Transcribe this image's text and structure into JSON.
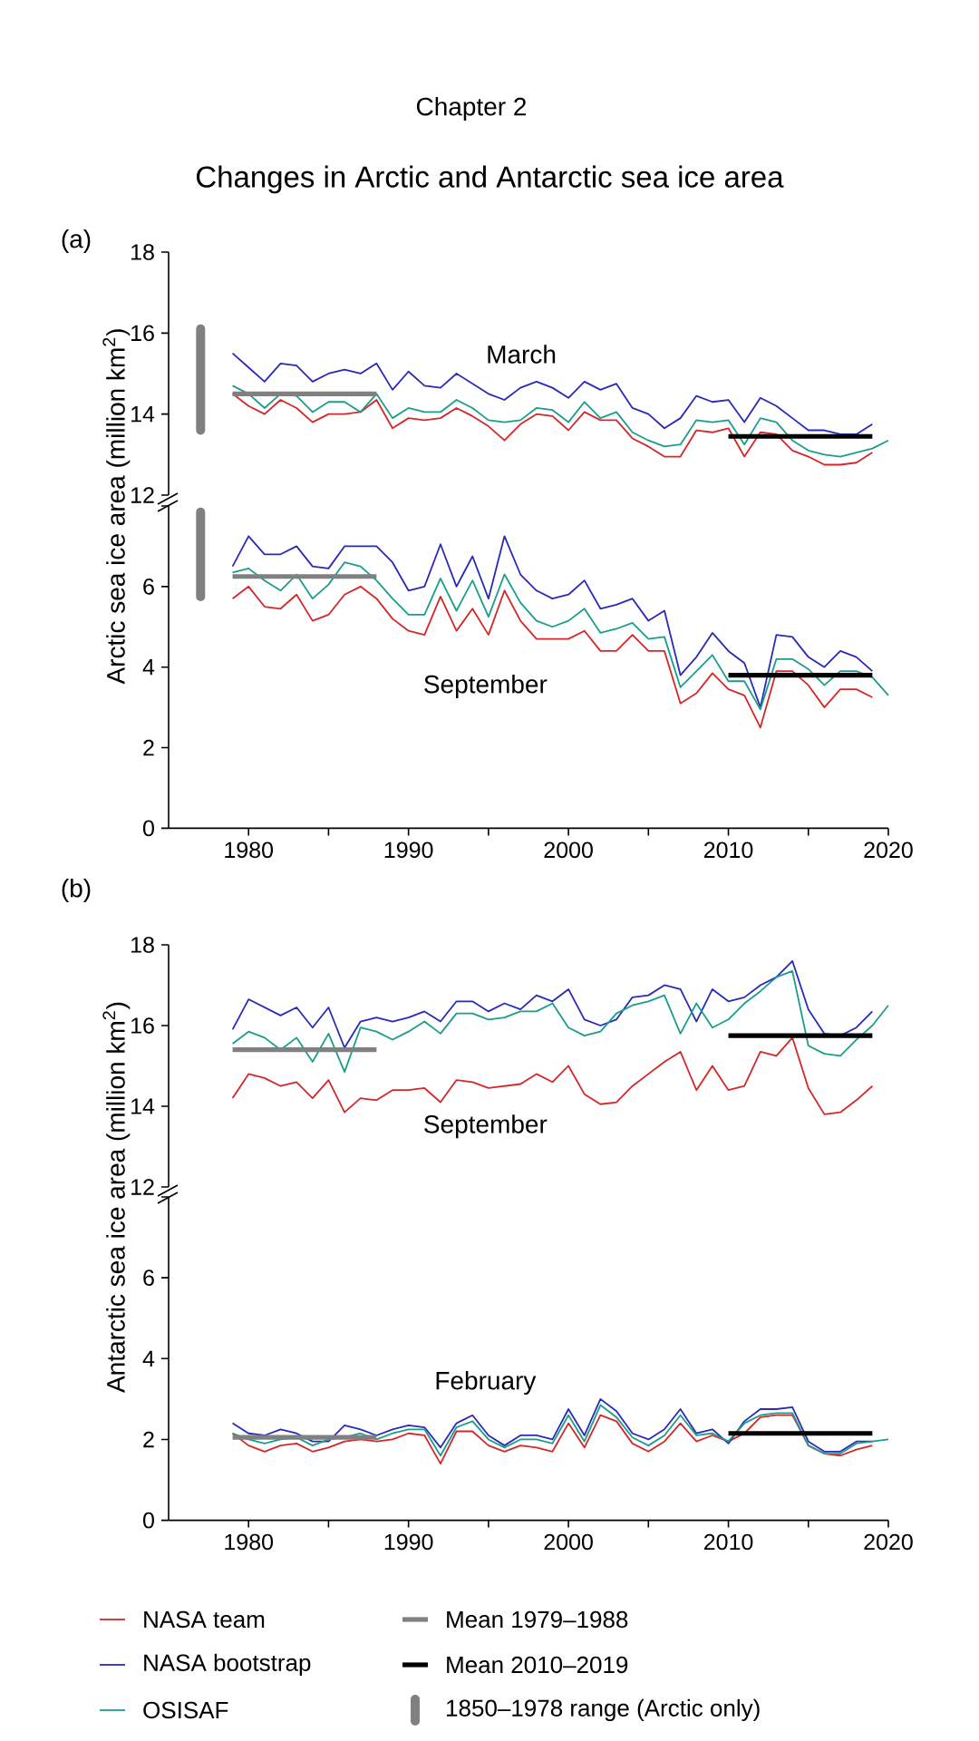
{
  "chart_data": [
    {
      "type": "line",
      "title": "Changes in Arctic and Antarctic sea ice area",
      "annotations": [
        "(a)",
        "Chapter 2",
        "March"
      ],
      "x": [
        1979,
        1980,
        1981,
        1982,
        1983,
        1984,
        1985,
        1986,
        1987,
        1988,
        1989,
        1990,
        1991,
        1992,
        1993,
        1994,
        1995,
        1996,
        1997,
        1998,
        1999,
        2000,
        2001,
        2002,
        2003,
        2004,
        2005,
        2006,
        2007,
        2008,
        2009,
        2010,
        2011,
        2012,
        2013,
        2014,
        2015,
        2016,
        2017,
        2018,
        2019
      ],
      "xlim": [
        1975,
        2020
      ],
      "ylim": [
        12,
        18
      ],
      "yticks": [
        12,
        14,
        16,
        18
      ],
      "tick_labels": "y",
      "series": [
        {
          "color": "#d62728",
          "values": [
            14.5,
            14.2,
            14.0,
            14.35,
            14.15,
            13.8,
            14.0,
            14.0,
            14.05,
            14.35,
            13.65,
            13.9,
            13.85,
            13.9,
            14.15,
            13.95,
            13.7,
            13.35,
            13.75,
            14.0,
            13.95,
            13.6,
            14.05,
            13.85,
            13.85,
            13.4,
            13.2,
            12.95,
            12.95,
            13.6,
            13.55,
            13.65,
            12.95,
            13.55,
            13.5,
            13.1,
            12.95,
            12.75,
            12.75,
            12.8,
            13.05
          ]
        },
        {
          "color": "#2a2ab8",
          "values": [
            15.5,
            15.15,
            14.8,
            15.25,
            15.2,
            14.8,
            15.0,
            15.1,
            15.0,
            15.25,
            14.6,
            15.05,
            14.7,
            14.65,
            15.0,
            14.75,
            14.5,
            14.35,
            14.65,
            14.8,
            14.65,
            14.4,
            14.8,
            14.6,
            14.75,
            14.15,
            14.0,
            13.65,
            13.9,
            14.45,
            14.3,
            14.35,
            13.8,
            14.4,
            14.2,
            13.9,
            13.6,
            13.6,
            13.5,
            13.5,
            13.75
          ]
        },
        {
          "color": "#1a9e8a",
          "x": [
            1979,
            1980,
            1981,
            1982,
            1983,
            1984,
            1985,
            1986,
            1987,
            1988,
            1989,
            1990,
            1991,
            1992,
            1993,
            1994,
            1995,
            1996,
            1997,
            1998,
            1999,
            2000,
            2001,
            2002,
            2003,
            2004,
            2005,
            2006,
            2007,
            2008,
            2009,
            2010,
            2011,
            2012,
            2013,
            2014,
            2015,
            2016,
            2017,
            2018,
            2019,
            2020
          ],
          "values": [
            14.7,
            14.5,
            14.15,
            14.5,
            14.45,
            14.05,
            14.3,
            14.3,
            14.05,
            14.5,
            13.9,
            14.15,
            14.05,
            14.05,
            14.35,
            14.15,
            13.85,
            13.8,
            13.85,
            14.15,
            14.1,
            13.8,
            14.3,
            13.9,
            14.05,
            13.55,
            13.35,
            13.2,
            13.25,
            13.85,
            13.8,
            13.85,
            13.25,
            13.9,
            13.8,
            13.35,
            13.1,
            13.0,
            12.95,
            13.05,
            13.15,
            13.35
          ]
        },
        {
          "color": "#808080",
          "x": [
            1979,
            1988
          ],
          "values": [
            14.5,
            14.5
          ]
        },
        {
          "color": "#000000",
          "x": [
            2010,
            2019
          ],
          "values": [
            13.45,
            13.45
          ]
        },
        {
          "name": "1850–1978 range (Arctic only)",
          "type": "bar",
          "color": "#808080",
          "x": [
            1977
          ],
          "base": [
            13.6
          ],
          "values": [
            2.5
          ]
        }
      ]
    },
    {
      "type": "line",
      "ylabel": "Arctic sea ice area (million km$^{2}$)",
      "annotations": [
        "September"
      ],
      "x": [
        1979,
        1980,
        1981,
        1982,
        1983,
        1984,
        1985,
        1986,
        1987,
        1988,
        1989,
        1990,
        1991,
        1992,
        1993,
        1994,
        1995,
        1996,
        1997,
        1998,
        1999,
        2000,
        2001,
        2002,
        2003,
        2004,
        2005,
        2006,
        2007,
        2008,
        2009,
        2010,
        2011,
        2012,
        2013,
        2014,
        2015,
        2016,
        2017,
        2018,
        2019
      ],
      "xlim": [
        1975,
        2020
      ],
      "xticks": [
        1980,
        {
          "value": 1985,
          "label": null
        },
        1990,
        {
          "value": 1995,
          "label": null
        },
        2000,
        {
          "value": 2005,
          "label": null
        },
        2010,
        {
          "value": 2015,
          "label": null
        },
        2020
      ],
      "ylim": [
        0,
        8
      ],
      "yticks": [
        0,
        2,
        4,
        6,
        {
          "value": 8,
          "label": null
        }
      ],
      "series": [
        {
          "color": "#d62728",
          "values": [
            5.7,
            6.0,
            5.5,
            5.45,
            5.8,
            5.15,
            5.3,
            5.8,
            6.0,
            5.7,
            5.2,
            4.9,
            4.8,
            5.75,
            4.9,
            5.45,
            4.8,
            5.9,
            5.15,
            4.7,
            4.7,
            4.7,
            4.9,
            4.4,
            4.4,
            4.8,
            4.4,
            4.4,
            3.1,
            3.35,
            3.85,
            3.45,
            3.3,
            2.5,
            3.9,
            3.9,
            3.55,
            3.0,
            3.45,
            3.45,
            3.25
          ]
        },
        {
          "color": "#2a2ab8",
          "values": [
            6.5,
            7.25,
            6.8,
            6.8,
            7.0,
            6.5,
            6.45,
            7.0,
            7.0,
            7.0,
            6.6,
            5.9,
            6.0,
            7.05,
            6.0,
            6.75,
            5.7,
            7.25,
            6.3,
            5.9,
            5.7,
            5.8,
            6.15,
            5.45,
            5.55,
            5.7,
            5.15,
            5.4,
            3.8,
            4.25,
            4.85,
            4.4,
            4.1,
            3.0,
            4.8,
            4.75,
            4.25,
            4.0,
            4.4,
            4.25,
            3.9
          ]
        },
        {
          "color": "#1a9e8a",
          "x": [
            1979,
            1980,
            1981,
            1982,
            1983,
            1984,
            1985,
            1986,
            1987,
            1988,
            1989,
            1990,
            1991,
            1992,
            1993,
            1994,
            1995,
            1996,
            1997,
            1998,
            1999,
            2000,
            2001,
            2002,
            2003,
            2004,
            2005,
            2006,
            2007,
            2008,
            2009,
            2010,
            2011,
            2012,
            2013,
            2014,
            2015,
            2016,
            2017,
            2018,
            2019,
            2020
          ],
          "values": [
            6.35,
            6.45,
            6.15,
            5.9,
            6.3,
            5.7,
            6.05,
            6.6,
            6.5,
            6.15,
            5.7,
            5.3,
            5.3,
            6.2,
            5.4,
            6.15,
            5.25,
            6.3,
            5.6,
            5.15,
            5.0,
            5.15,
            5.45,
            4.85,
            4.95,
            5.1,
            4.7,
            4.75,
            3.5,
            3.9,
            4.3,
            3.65,
            3.65,
            2.95,
            4.2,
            4.2,
            3.95,
            3.55,
            3.9,
            3.9,
            3.75,
            3.3
          ]
        },
        {
          "color": "#808080",
          "x": [
            1979,
            1988
          ],
          "values": [
            6.25,
            6.25
          ]
        },
        {
          "color": "#000000",
          "x": [
            2010,
            2019
          ],
          "values": [
            3.8,
            3.8
          ]
        },
        {
          "type": "bar",
          "color": "#808080",
          "x": [
            1977
          ],
          "base": [
            5.75
          ],
          "values": [
            2.1
          ]
        }
      ]
    },
    {
      "type": "line",
      "annotations": [
        "(b)",
        "September"
      ],
      "x": [
        1979,
        1980,
        1981,
        1982,
        1983,
        1984,
        1985,
        1986,
        1987,
        1988,
        1989,
        1990,
        1991,
        1992,
        1993,
        1994,
        1995,
        1996,
        1997,
        1998,
        1999,
        2000,
        2001,
        2002,
        2003,
        2004,
        2005,
        2006,
        2007,
        2008,
        2009,
        2010,
        2011,
        2012,
        2013,
        2014,
        2015,
        2016,
        2017,
        2018,
        2019
      ],
      "xlim": [
        1975,
        2020
      ],
      "ylim": [
        12,
        18
      ],
      "yticks": [
        12,
        14,
        16,
        18
      ],
      "tick_labels": "y",
      "series": [
        {
          "color": "#d62728",
          "values": [
            14.2,
            14.8,
            14.7,
            14.5,
            14.6,
            14.2,
            14.65,
            13.85,
            14.2,
            14.15,
            14.4,
            14.4,
            14.45,
            14.1,
            14.65,
            14.6,
            14.45,
            14.5,
            14.55,
            14.8,
            14.6,
            15.0,
            14.3,
            14.05,
            14.1,
            14.5,
            14.8,
            15.1,
            15.35,
            14.4,
            15.0,
            14.4,
            14.5,
            15.35,
            15.25,
            15.7,
            14.45,
            13.8,
            13.85,
            14.15,
            14.5
          ]
        },
        {
          "color": "#2a2ab8",
          "values": [
            15.9,
            16.65,
            16.45,
            16.25,
            16.45,
            15.95,
            16.45,
            15.45,
            16.1,
            16.2,
            16.1,
            16.2,
            16.35,
            16.1,
            16.6,
            16.6,
            16.35,
            16.55,
            16.4,
            16.75,
            16.6,
            16.9,
            16.15,
            16.0,
            16.15,
            16.7,
            16.75,
            17.0,
            16.9,
            16.1,
            16.9,
            16.6,
            16.7,
            17.0,
            17.2,
            17.6,
            16.4,
            15.8,
            15.75,
            15.95,
            16.35
          ]
        },
        {
          "color": "#1a9e8a",
          "x": [
            1979,
            1980,
            1981,
            1982,
            1983,
            1984,
            1985,
            1986,
            1987,
            1988,
            1989,
            1990,
            1991,
            1992,
            1993,
            1994,
            1995,
            1996,
            1997,
            1998,
            1999,
            2000,
            2001,
            2002,
            2003,
            2004,
            2005,
            2006,
            2007,
            2008,
            2009,
            2010,
            2011,
            2012,
            2013,
            2014,
            2015,
            2016,
            2017,
            2018,
            2019,
            2020
          ],
          "values": [
            15.55,
            15.85,
            15.7,
            15.4,
            15.7,
            15.1,
            15.8,
            14.85,
            15.95,
            15.85,
            15.65,
            15.85,
            16.1,
            15.8,
            16.3,
            16.3,
            16.15,
            16.2,
            16.35,
            16.35,
            16.55,
            15.95,
            15.75,
            15.85,
            16.3,
            16.5,
            16.6,
            16.75,
            15.8,
            16.55,
            15.95,
            16.15,
            16.55,
            16.85,
            17.2,
            17.35,
            15.5,
            15.3,
            15.25,
            15.65,
            16.0,
            16.5
          ]
        },
        {
          "color": "#808080",
          "x": [
            1979,
            1988
          ],
          "values": [
            15.4,
            15.4
          ]
        },
        {
          "color": "#000000",
          "x": [
            2010,
            2019
          ],
          "values": [
            15.75,
            15.75
          ]
        }
      ]
    },
    {
      "type": "line",
      "ylabel": "Antarctic sea ice area (million km$^{2}$)",
      "legend": "bottom",
      "annotations": [
        "February"
      ],
      "x": [
        1979,
        1980,
        1981,
        1982,
        1983,
        1984,
        1985,
        1986,
        1987,
        1988,
        1989,
        1990,
        1991,
        1992,
        1993,
        1994,
        1995,
        1996,
        1997,
        1998,
        1999,
        2000,
        2001,
        2002,
        2003,
        2004,
        2005,
        2006,
        2007,
        2008,
        2009,
        2010,
        2011,
        2012,
        2013,
        2014,
        2015,
        2016,
        2017,
        2018,
        2019
      ],
      "xlim": [
        1975,
        2020
      ],
      "xticks": [
        1980,
        {
          "value": 1985,
          "label": null
        },
        1990,
        {
          "value": 1995,
          "label": null
        },
        2000,
        {
          "value": 2005,
          "label": null
        },
        2010,
        {
          "value": 2015,
          "label": null
        },
        2020
      ],
      "ylim": [
        0,
        8
      ],
      "yticks": [
        0,
        2,
        4,
        6,
        {
          "value": 8,
          "label": null
        }
      ],
      "series": [
        {
          "name": "NASA team",
          "color": "#d62728",
          "values": [
            2.15,
            1.85,
            1.7,
            1.85,
            1.9,
            1.7,
            1.8,
            1.95,
            2.0,
            1.95,
            2.0,
            2.15,
            2.1,
            1.4,
            2.2,
            2.2,
            1.85,
            1.7,
            1.85,
            1.8,
            1.7,
            2.4,
            1.8,
            2.6,
            2.45,
            1.9,
            1.7,
            1.95,
            2.4,
            1.95,
            2.1,
            1.95,
            2.15,
            2.55,
            2.6,
            2.6,
            1.85,
            1.65,
            1.6,
            1.75,
            1.85
          ]
        },
        {
          "name": "NASA bootstrap",
          "color": "#2a2ab8",
          "values": [
            2.4,
            2.15,
            2.1,
            2.25,
            2.15,
            1.95,
            1.95,
            2.35,
            2.25,
            2.1,
            2.25,
            2.35,
            2.3,
            1.8,
            2.4,
            2.6,
            2.1,
            1.85,
            2.1,
            2.1,
            2.0,
            2.75,
            2.1,
            3.0,
            2.7,
            2.15,
            2.0,
            2.25,
            2.75,
            2.15,
            2.25,
            1.9,
            2.45,
            2.75,
            2.75,
            2.8,
            1.95,
            1.7,
            1.7,
            1.95,
            1.95
          ]
        },
        {
          "name": "OSISAF",
          "color": "#1a9e8a",
          "x": [
            1979,
            1980,
            1981,
            1982,
            1983,
            1984,
            1985,
            1986,
            1987,
            1988,
            1989,
            1990,
            1991,
            1992,
            1993,
            1994,
            1995,
            1996,
            1997,
            1998,
            1999,
            2000,
            2001,
            2002,
            2003,
            2004,
            2005,
            2006,
            2007,
            2008,
            2009,
            2010,
            2011,
            2012,
            2013,
            2014,
            2015,
            2016,
            2017,
            2018,
            2019,
            2020
          ],
          "values": [
            2.15,
            2.0,
            1.9,
            2.0,
            2.05,
            1.85,
            2.0,
            2.05,
            2.15,
            2.0,
            2.15,
            2.25,
            2.25,
            1.6,
            2.3,
            2.45,
            2.0,
            1.8,
            2.0,
            2.0,
            1.9,
            2.6,
            1.95,
            2.85,
            2.55,
            2.05,
            1.85,
            2.1,
            2.6,
            2.1,
            2.15,
            1.95,
            2.4,
            2.6,
            2.65,
            2.65,
            1.85,
            1.65,
            1.65,
            1.9,
            1.95,
            2.0
          ]
        },
        {
          "name": "Mean 1979–1988",
          "color": "#808080",
          "x": [
            1979,
            1988
          ],
          "values": [
            2.05,
            2.05
          ]
        },
        {
          "name": "Mean 2010–2019",
          "color": "#000000",
          "x": [
            2010,
            2019
          ],
          "values": [
            2.15,
            2.15
          ]
        }
      ]
    }
  ]
}
